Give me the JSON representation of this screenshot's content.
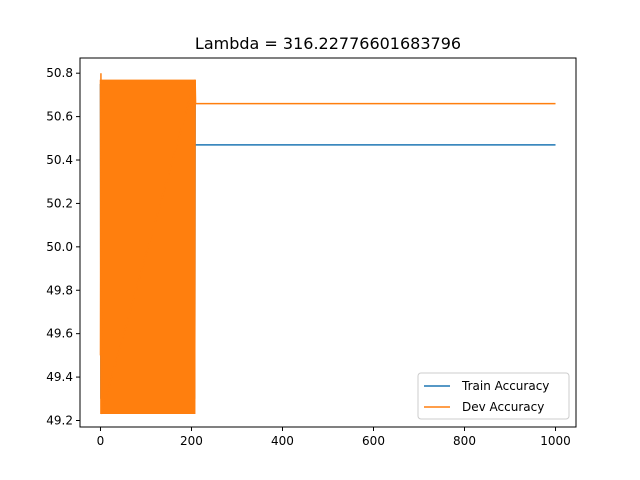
{
  "chart_data": {
    "type": "line",
    "title": "Lambda = 316.22776601683796",
    "xlabel": "",
    "ylabel": "",
    "xlim": [
      -45,
      1045
    ],
    "ylim": [
      49.17,
      50.87
    ],
    "xticks": [
      0,
      200,
      400,
      600,
      800,
      1000
    ],
    "xtick_labels": [
      "0",
      "200",
      "400",
      "600",
      "800",
      "1000"
    ],
    "yticks": [
      49.2,
      49.4,
      49.6,
      49.8,
      50.0,
      50.2,
      50.4,
      50.6,
      50.8
    ],
    "ytick_labels": [
      "49.2",
      "49.4",
      "49.6",
      "49.8",
      "50.0",
      "50.2",
      "50.4",
      "50.6",
      "50.8"
    ],
    "grid": false,
    "legend_position": "lower-right",
    "series": [
      {
        "name": "Train Accuracy",
        "color": "#1f77b4",
        "oscillation_until_epoch": 208,
        "oscillation_range": [
          49.3,
          50.75
        ],
        "x": [
          208,
          1000
        ],
        "y": [
          50.47,
          50.47
        ]
      },
      {
        "name": "Dev Accuracy",
        "color": "#ff7f0e",
        "oscillation_until_epoch": 208,
        "oscillation_range": [
          49.23,
          50.77
        ],
        "x": [
          0,
          1,
          2,
          208,
          209,
          1000
        ],
        "y": [
          49.5,
          50.8,
          49.23,
          50.77,
          50.66,
          50.66
        ]
      }
    ]
  }
}
